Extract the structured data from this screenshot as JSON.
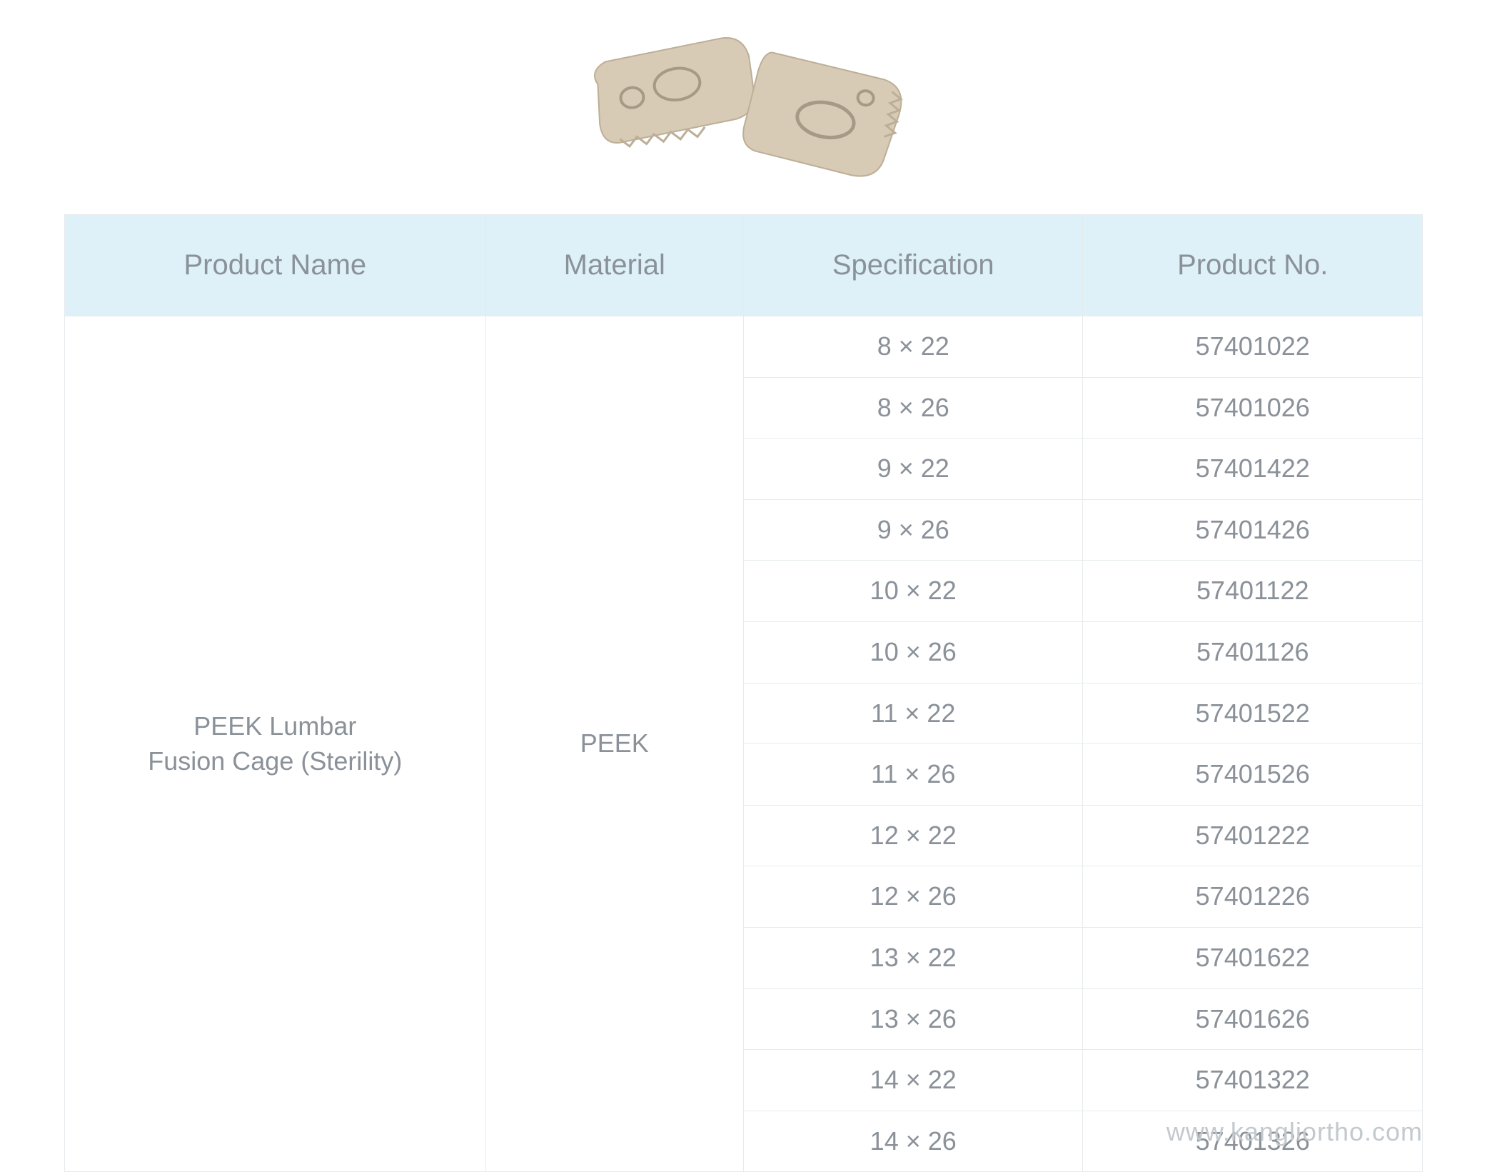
{
  "table": {
    "header_bg": "#def0f8",
    "border_color": "#e7ebed",
    "text_color": "#8a9199",
    "header_fontsize": 40,
    "cell_fontsize": 36,
    "columns": [
      {
        "key": "product_name",
        "label": "Product Name",
        "width_pct": 31
      },
      {
        "key": "material",
        "label": "Material",
        "width_pct": 19
      },
      {
        "key": "spec",
        "label": "Specification",
        "width_pct": 25
      },
      {
        "key": "product_no",
        "label": "Product No.",
        "width_pct": 25
      }
    ],
    "product_name": "PEEK Lumbar\nFusion Cage (Sterility)",
    "material": "PEEK",
    "rows": [
      {
        "spec": "8 × 22",
        "product_no": "57401022"
      },
      {
        "spec": "8 × 26",
        "product_no": "57401026"
      },
      {
        "spec": "9 × 22",
        "product_no": "57401422"
      },
      {
        "spec": "9 × 26",
        "product_no": "57401426"
      },
      {
        "spec": "10 × 22",
        "product_no": "57401122"
      },
      {
        "spec": "10 × 26",
        "product_no": "57401126"
      },
      {
        "spec": "11 × 22",
        "product_no": "57401522"
      },
      {
        "spec": "11 × 26",
        "product_no": "57401526"
      },
      {
        "spec": "12 × 22",
        "product_no": "57401222"
      },
      {
        "spec": "12 × 26",
        "product_no": "57401226"
      },
      {
        "spec": "13 × 22",
        "product_no": "57401622"
      },
      {
        "spec": "13 × 26",
        "product_no": "57401626"
      },
      {
        "spec": "14 × 22",
        "product_no": "57401322"
      },
      {
        "spec": "14 × 26",
        "product_no": "57401326"
      }
    ]
  },
  "image": {
    "fill_color": "#d8cbb6",
    "shadow_color": "#bcae97",
    "hole_stroke": "#a69a86"
  },
  "watermark": "www.kangliortho.com",
  "watermark_color": "#c3c9cd"
}
